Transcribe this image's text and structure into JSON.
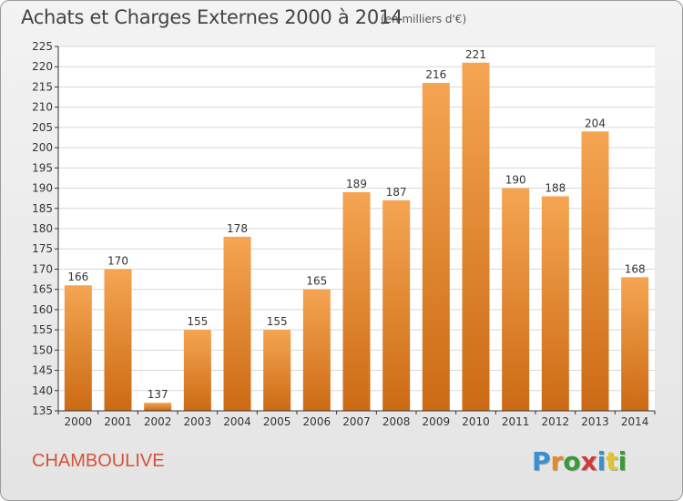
{
  "header": {
    "title": "Achats et Charges Externes 2000 à 2014",
    "subtitle": "(en milliers d'€)"
  },
  "footer": {
    "commune": "CHAMBOULIVE",
    "logo_text": "Proxiti",
    "logo_letters": [
      {
        "ch": "P",
        "color": "#3a8fd1"
      },
      {
        "ch": "r",
        "color": "#e2892a"
      },
      {
        "ch": "o",
        "color": "#3a9a3a"
      },
      {
        "ch": "x",
        "color": "#d23a3a"
      },
      {
        "ch": "i",
        "color": "#3a8fd1"
      },
      {
        "ch": "t",
        "color": "#e2c42a"
      },
      {
        "ch": "i",
        "color": "#3a9a3a"
      }
    ]
  },
  "colors": {
    "bar_light": "#f5a552",
    "bar_dark": "#cc6a14",
    "grid": "#d8d8d8",
    "axis": "#333333"
  },
  "chart_data": {
    "type": "bar",
    "categories": [
      "2000",
      "2001",
      "2002",
      "2003",
      "2004",
      "2005",
      "2006",
      "2007",
      "2008",
      "2009",
      "2010",
      "2011",
      "2012",
      "2013",
      "2014"
    ],
    "values": [
      166,
      170,
      137,
      155,
      178,
      155,
      165,
      189,
      187,
      216,
      221,
      190,
      188,
      204,
      168
    ],
    "ylim": [
      135,
      225
    ],
    "yticks": [
      135,
      140,
      145,
      150,
      155,
      160,
      165,
      170,
      175,
      180,
      185,
      190,
      195,
      200,
      205,
      210,
      215,
      220,
      225
    ],
    "grid": true,
    "data_labels": true,
    "legend": "none"
  }
}
